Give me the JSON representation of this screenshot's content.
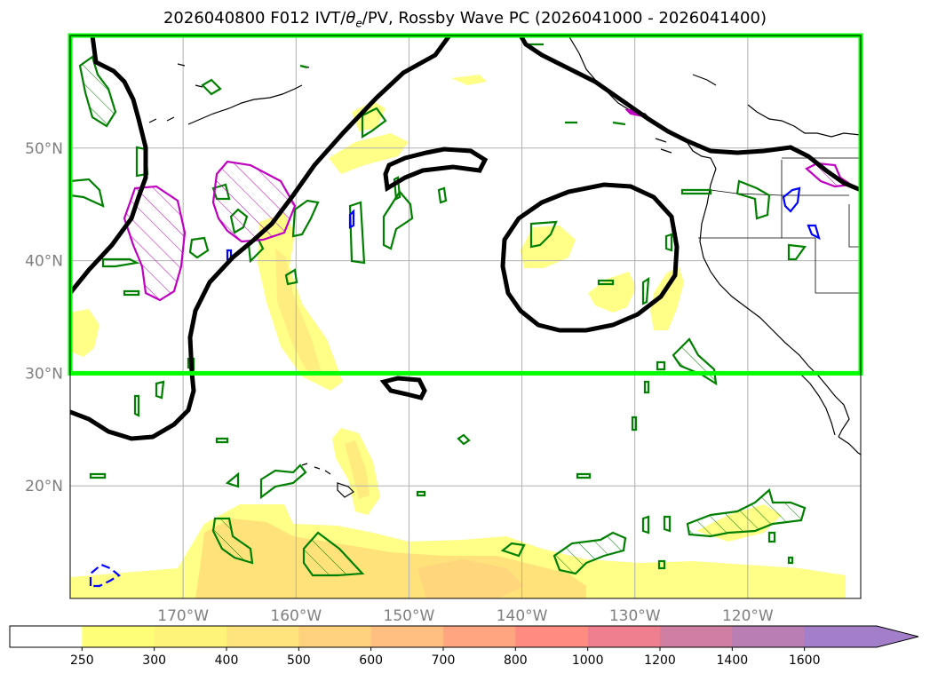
{
  "title": {
    "prefix": "2026040800 F012 IVT/",
    "theta": "θ",
    "theta_sub": "e",
    "suffix": "/PV, Rossby Wave PC (2026041000 - 2026041400)"
  },
  "chart_data": {
    "type": "map",
    "projection": "PlateCarree",
    "lon_range": [
      -180,
      -110
    ],
    "lat_range": [
      10,
      60
    ],
    "grid": true,
    "x_ticks": [
      {
        "lon": -170,
        "label": "170°W"
      },
      {
        "lon": -160,
        "label": "160°W"
      },
      {
        "lon": -150,
        "label": "150°W"
      },
      {
        "lon": -140,
        "label": "140°W"
      },
      {
        "lon": -130,
        "label": "130°W"
      },
      {
        "lon": -120,
        "label": "120°W"
      }
    ],
    "y_ticks": [
      {
        "lat": 20,
        "label": "20°N"
      },
      {
        "lat": 30,
        "label": "30°N"
      },
      {
        "lat": 40,
        "label": "40°N"
      },
      {
        "lat": 50,
        "label": "50°N"
      }
    ],
    "highlight_box": {
      "lon": [
        -180,
        -110
      ],
      "lat": [
        30,
        60
      ],
      "color": "#00ff00"
    },
    "colorbar": {
      "levels": [
        250,
        300,
        400,
        500,
        600,
        700,
        800,
        1000,
        1200,
        1400,
        1600
      ],
      "labels": [
        "250",
        "300",
        "400",
        "500",
        "600",
        "700",
        "800",
        "1000",
        "1200",
        "1400",
        "1600"
      ],
      "colors": [
        "#ffff77",
        "#fff47a",
        "#ffe37c",
        "#ffd27e",
        "#ffbf80",
        "#ffa680",
        "#ff8c80",
        "#ef7f8f",
        "#d07fa2",
        "#b97fb5",
        "#a27fc8"
      ],
      "under_color": "#ffffff",
      "extend": "max"
    },
    "colors": {
      "ivt_light": "#ffff88",
      "ivt_mid": "#ffe27a",
      "pc_contour": "#000000",
      "theta_contour": "#008000",
      "pv_contour": "#0000ff",
      "hatched_contour": "#c000c0",
      "coastline": "#000000"
    }
  }
}
